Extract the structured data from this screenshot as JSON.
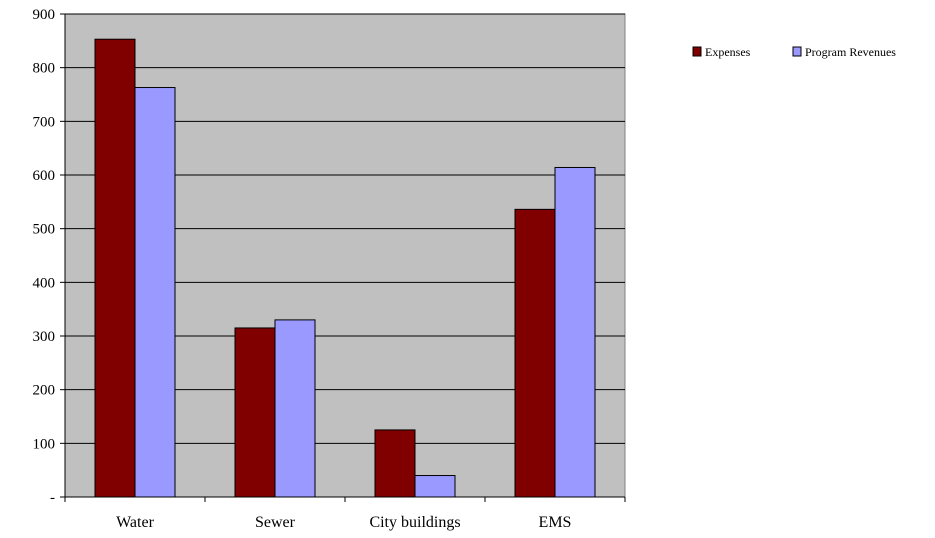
{
  "chart_data": {
    "type": "bar",
    "categories": [
      "Water",
      "Sewer",
      "City buildings",
      "EMS"
    ],
    "series": [
      {
        "name": "Expenses",
        "color": "#800000",
        "values": [
          853,
          315,
          125,
          536
        ]
      },
      {
        "name": "Program Revenues",
        "color": "#9999ff",
        "values": [
          763,
          330,
          40,
          614
        ]
      }
    ],
    "ylim": [
      0,
      900
    ],
    "yticks": [
      {
        "value": 0,
        "label": "-"
      },
      {
        "value": 100,
        "label": "100"
      },
      {
        "value": 200,
        "label": "200"
      },
      {
        "value": 300,
        "label": "300"
      },
      {
        "value": 400,
        "label": "400"
      },
      {
        "value": 500,
        "label": "500"
      },
      {
        "value": 600,
        "label": "600"
      },
      {
        "value": 700,
        "label": "700"
      },
      {
        "value": 800,
        "label": "800"
      },
      {
        "value": 900,
        "label": "900"
      }
    ],
    "plot_background": "#c0c0c0",
    "grid": true,
    "legend_position": "top-right"
  }
}
